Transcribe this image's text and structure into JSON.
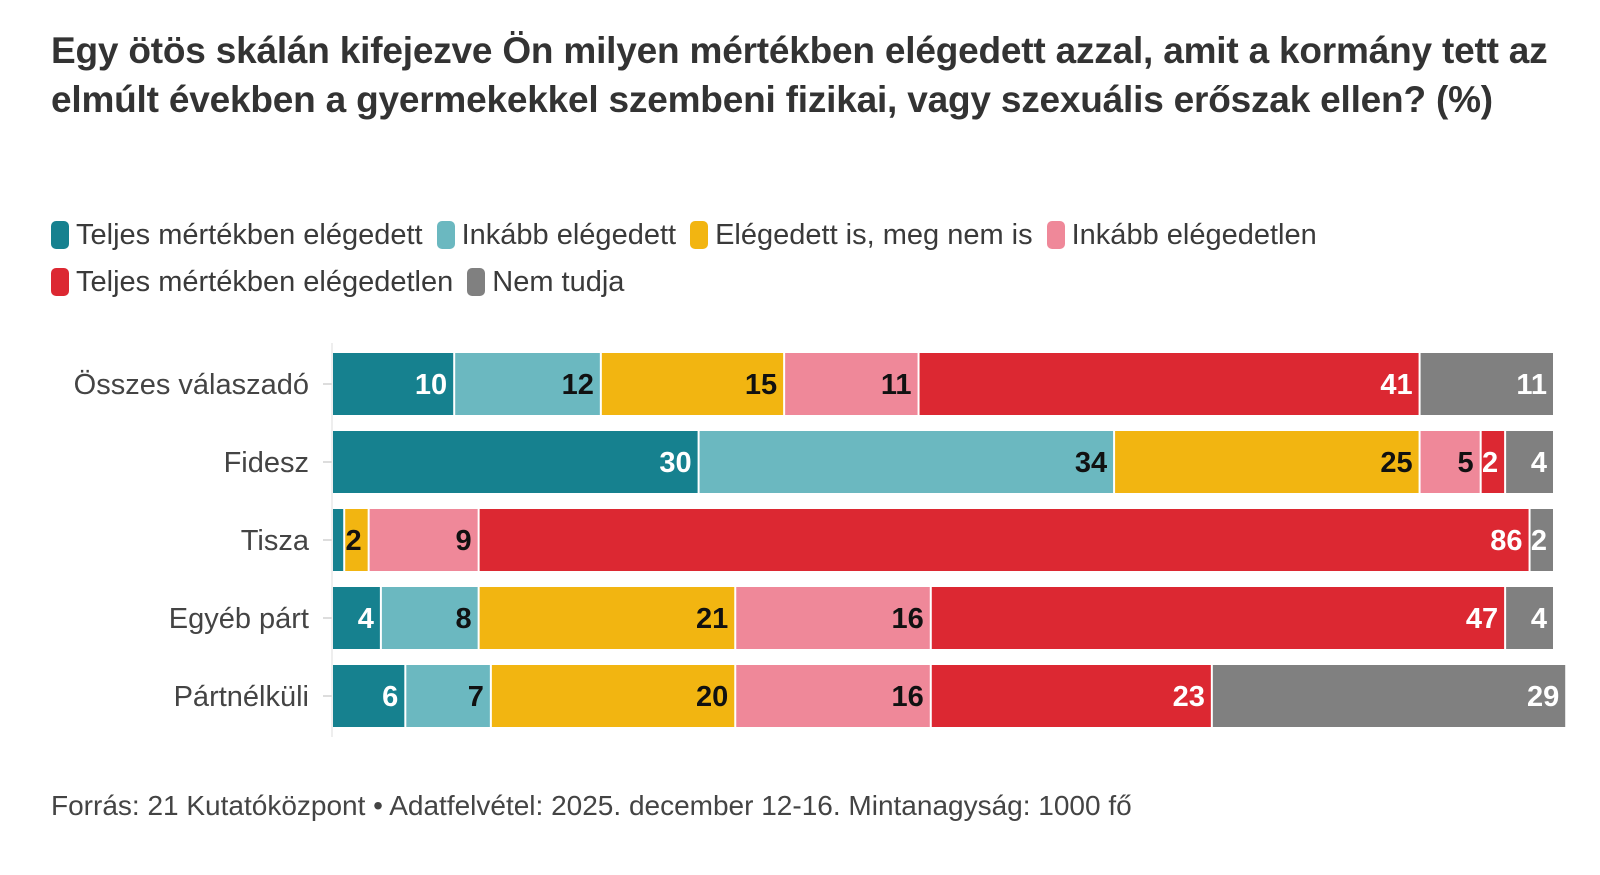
{
  "chart_data": {
    "type": "bar",
    "orientation": "horizontal",
    "stacked": true,
    "title": "Egy ötös skálán kifejezve Ön milyen mértékben elégedett azzal, amit a kormány tett az elmúlt években a gyermekekkel szembeni fizikai, vagy szexuális erőszak ellen? (%)",
    "xlabel": "",
    "ylabel": "",
    "xlim": [
      0,
      100
    ],
    "grid": false,
    "legend_position": "top-left",
    "categories": [
      "Összes válaszadó",
      "Fidesz",
      "Tisza",
      "Egyéb párt",
      "Pártnélküli"
    ],
    "series": [
      {
        "name": "Teljes mértékben elégedett",
        "color": "#16818f",
        "label_color": "#ffffff",
        "values": [
          10,
          30,
          1,
          4,
          6
        ],
        "labels": [
          "10",
          "30",
          "",
          "4",
          "6"
        ]
      },
      {
        "name": "Inkább elégedett",
        "color": "#6bb8c0",
        "label_color": "#111111",
        "values": [
          12,
          34,
          0,
          8,
          7
        ],
        "labels": [
          "12",
          "34",
          "",
          "8",
          "7"
        ]
      },
      {
        "name": "Elégedett is, meg nem is",
        "color": "#f2b511",
        "label_color": "#111111",
        "values": [
          15,
          25,
          2,
          21,
          20
        ],
        "labels": [
          "15",
          "25",
          "2",
          "21",
          "20"
        ]
      },
      {
        "name": "Inkább elégedetlen",
        "color": "#ef8899",
        "label_color": "#111111",
        "values": [
          11,
          5,
          9,
          16,
          16
        ],
        "labels": [
          "11",
          "5",
          "9",
          "16",
          "16"
        ]
      },
      {
        "name": "Teljes mértékben elégedetlen",
        "color": "#dc2832",
        "label_color": "#ffffff",
        "values": [
          41,
          2,
          86,
          47,
          23
        ],
        "labels": [
          "41",
          "2",
          "86",
          "47",
          "23"
        ]
      },
      {
        "name": "Nem tudja",
        "color": "#808080",
        "label_color": "#ffffff",
        "values": [
          11,
          4,
          2,
          4,
          29
        ],
        "labels": [
          "11",
          "4",
          "2",
          "4",
          "29"
        ]
      }
    ]
  },
  "footer": "Forrás: 21 Kutatóközpont • Adatfelvétel: 2025. december 12-16. Mintanagyság: 1000 fő"
}
